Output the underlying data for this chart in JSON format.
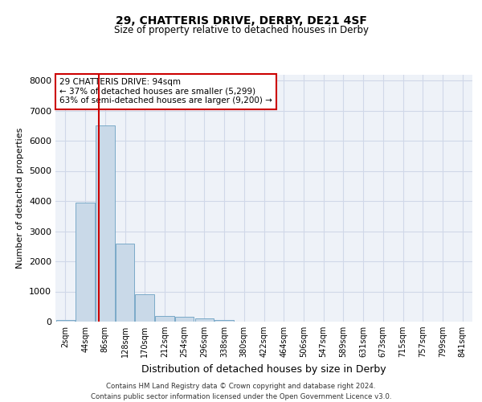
{
  "title1": "29, CHATTERIS DRIVE, DERBY, DE21 4SF",
  "title2": "Size of property relative to detached houses in Derby",
  "xlabel": "Distribution of detached houses by size in Derby",
  "ylabel": "Number of detached properties",
  "bin_labels": [
    "2sqm",
    "44sqm",
    "86sqm",
    "128sqm",
    "170sqm",
    "212sqm",
    "254sqm",
    "296sqm",
    "338sqm",
    "380sqm",
    "422sqm",
    "464sqm",
    "506sqm",
    "547sqm",
    "589sqm",
    "631sqm",
    "673sqm",
    "715sqm",
    "757sqm",
    "799sqm",
    "841sqm"
  ],
  "bar_heights": [
    50,
    3950,
    6500,
    2600,
    900,
    200,
    150,
    100,
    50,
    10,
    5,
    0,
    0,
    0,
    0,
    0,
    0,
    0,
    0,
    0,
    0
  ],
  "bar_color": "#c9d9e8",
  "bar_edge_color": "#7aaac8",
  "grid_color": "#d0d8e8",
  "bg_color": "#eef2f8",
  "vline_color": "#cc0000",
  "vline_pos": 1.69,
  "annotation_text": "29 CHATTERIS DRIVE: 94sqm\n← 37% of detached houses are smaller (5,299)\n63% of semi-detached houses are larger (9,200) →",
  "annotation_box_color": "#ffffff",
  "annotation_box_edge": "#cc0000",
  "footer": "Contains HM Land Registry data © Crown copyright and database right 2024.\nContains public sector information licensed under the Open Government Licence v3.0.",
  "ylim": [
    0,
    8200
  ],
  "yticks": [
    0,
    1000,
    2000,
    3000,
    4000,
    5000,
    6000,
    7000,
    8000
  ]
}
